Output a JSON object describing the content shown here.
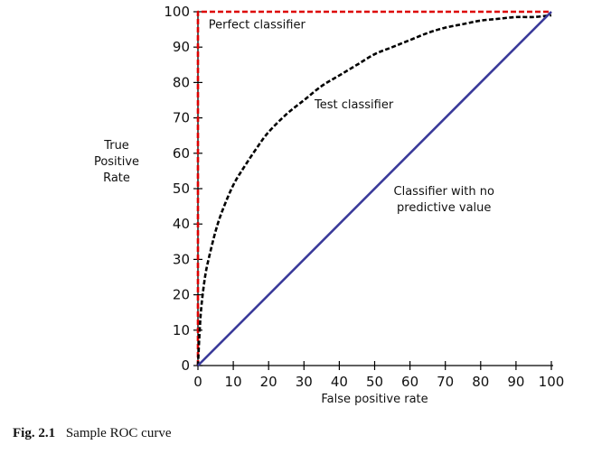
{
  "chart_data": {
    "type": "line",
    "xlabel": "False positive rate",
    "ylabel": [
      "True",
      "Positive",
      "Rate"
    ],
    "xlim": [
      0,
      100
    ],
    "ylim": [
      0,
      100
    ],
    "xticks": [
      0,
      10,
      20,
      30,
      40,
      50,
      60,
      70,
      80,
      90,
      100
    ],
    "yticks": [
      0,
      10,
      20,
      30,
      40,
      50,
      60,
      70,
      80,
      90,
      100
    ],
    "grid": false,
    "series": [
      {
        "name": "Perfect classifier",
        "style": "dashed",
        "color": "#dd0000",
        "x": [
          0,
          0,
          100
        ],
        "y": [
          0,
          100,
          100
        ]
      },
      {
        "name": "Test classifier",
        "style": "dashed",
        "color": "#000000",
        "x": [
          0,
          0.5,
          1,
          2,
          3,
          5,
          7,
          10,
          13,
          17,
          20,
          25,
          30,
          35,
          40,
          45,
          50,
          55,
          60,
          65,
          70,
          75,
          80,
          85,
          90,
          95,
          100
        ],
        "y": [
          0,
          10,
          17,
          25,
          30,
          38,
          44,
          51,
          56,
          62,
          66,
          71,
          75,
          79,
          82,
          85,
          88,
          90,
          92,
          94,
          95.5,
          96.5,
          97.5,
          98,
          98.5,
          98.5,
          99
        ]
      },
      {
        "name": "Classifier with no predictive value",
        "style": "solid",
        "color": "#3a3a9a",
        "x": [
          0,
          100
        ],
        "y": [
          0,
          100
        ]
      }
    ],
    "annotations": [
      {
        "lines": [
          "Perfect classifier"
        ],
        "x": 3,
        "y": 96.5
      },
      {
        "lines": [
          "Test classifier"
        ],
        "x": 33,
        "y": 74
      },
      {
        "lines": [
          "Classifier with no",
          "predictive value"
        ],
        "x": 53,
        "y": 49.5
      }
    ]
  },
  "caption": {
    "label": "Fig. 2.1",
    "text": "Sample ROC curve"
  }
}
